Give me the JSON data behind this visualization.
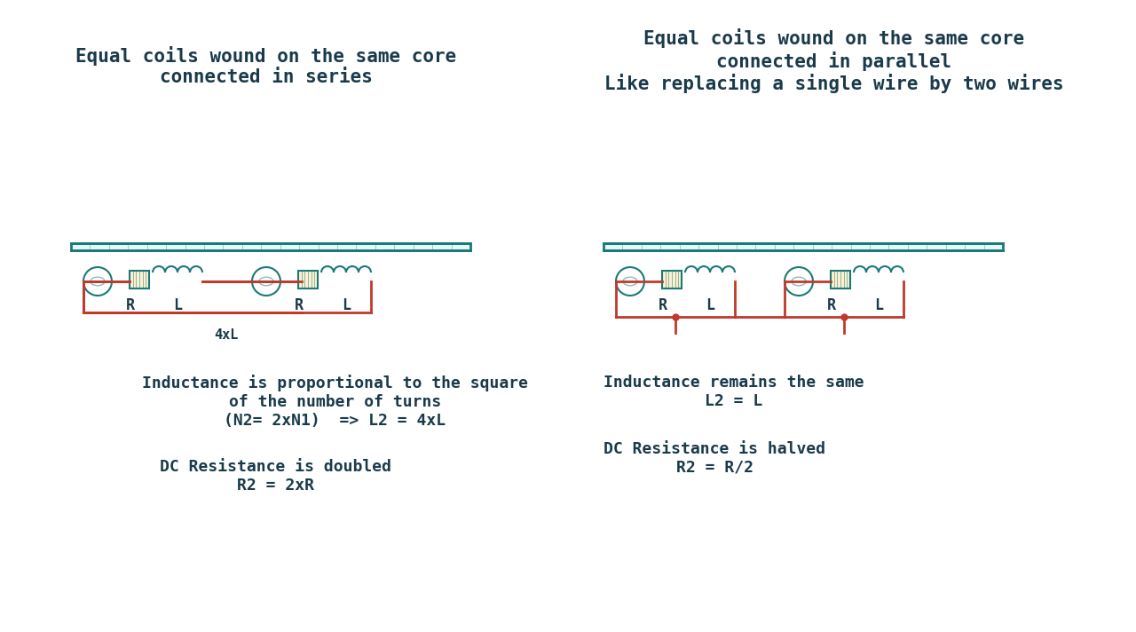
{
  "bg_color": "#ffffff",
  "teal": "#1a7a78",
  "red": "#c0392b",
  "dark_navy": "#1a3a4a",
  "left_title": "Equal coils wound on the same core\nconnected in series",
  "right_title": "Equal coils wound on the same core\nconnected in parallel\nLike replacing a single wire by two wires",
  "left_bottom1": "Inductance is proportional to the square\nof the number of turns\n(N2= 2xN1)  => L2 = 4xL",
  "left_bottom2": "DC Resistance is doubled\nR2 = 2xR",
  "right_bottom1": "Inductance remains the same\nL2 = L",
  "right_bottom2": "DC Resistance is halved\nR2 = R/2",
  "title_fontsize": 15,
  "label_fontsize": 13,
  "eq_fontsize": 13
}
